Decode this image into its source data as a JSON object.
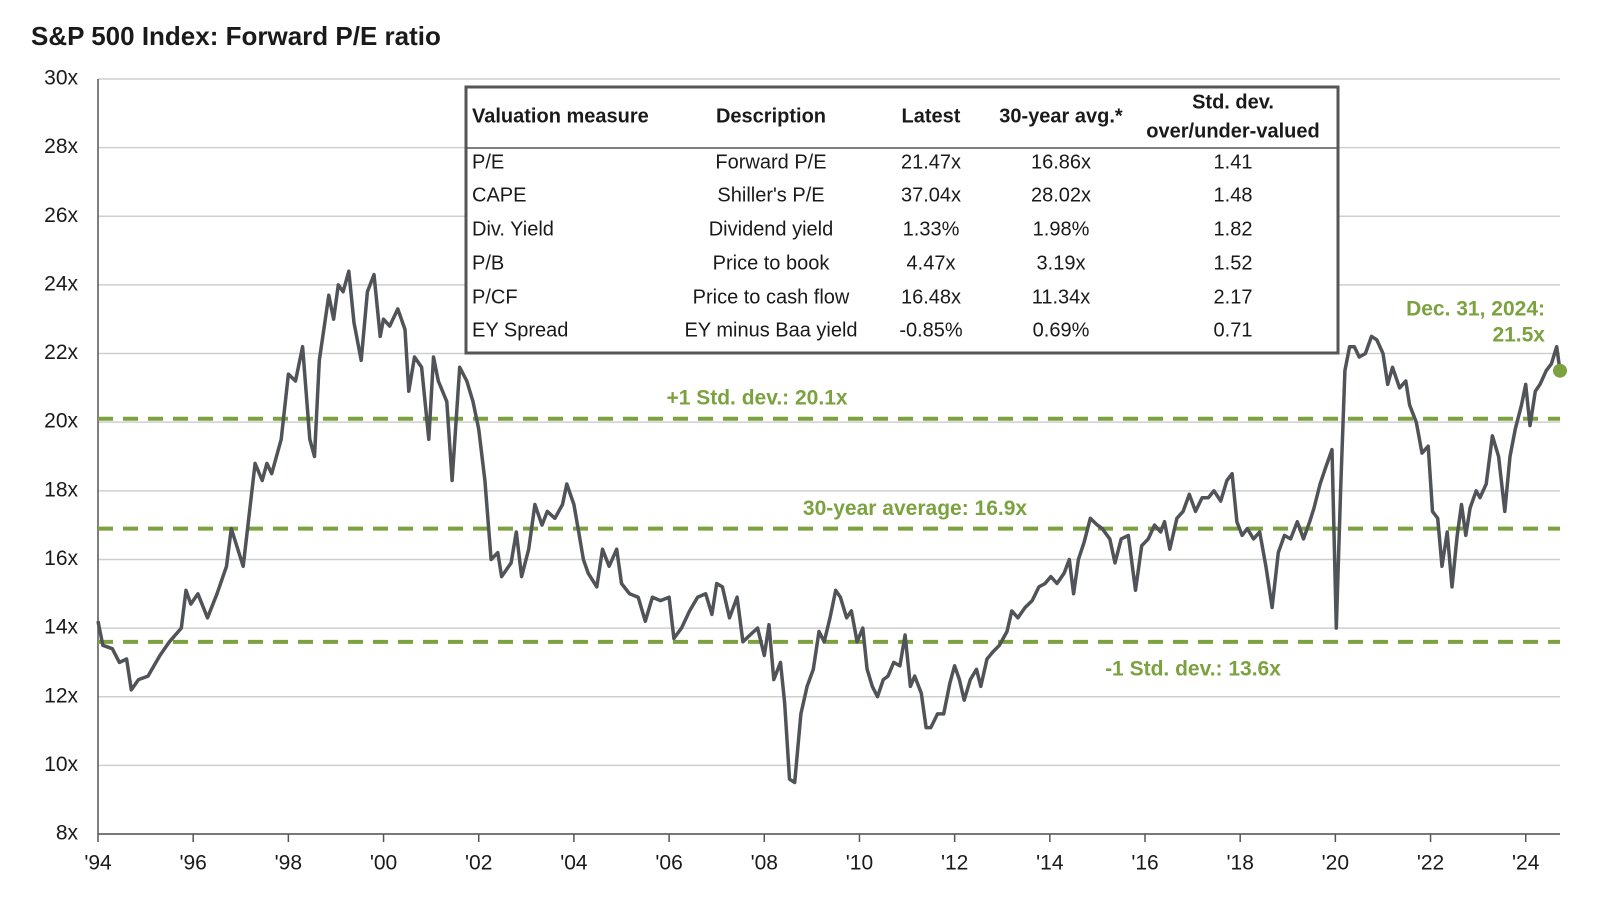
{
  "chart_data": {
    "type": "line",
    "title": "S&P 500 Index: Forward P/E ratio",
    "x": [
      1994.0,
      1994.1,
      1994.3,
      1994.45,
      1994.6,
      1994.7,
      1994.85,
      1995.05,
      1995.3,
      1995.5,
      1995.75,
      1995.85,
      1995.95,
      1996.1,
      1996.3,
      1996.5,
      1996.7,
      1996.8,
      1997.05,
      1997.3,
      1997.45,
      1997.55,
      1997.65,
      1997.85,
      1998.0,
      1998.15,
      1998.3,
      1998.45,
      1998.55,
      1998.65,
      1998.85,
      1998.95,
      1999.05,
      1999.15,
      1999.27,
      1999.38,
      1999.53,
      1999.66,
      1999.8,
      1999.93,
      2000.0,
      2000.13,
      2000.3,
      2000.45,
      2000.53,
      2000.65,
      2000.8,
      2000.95,
      2001.05,
      2001.15,
      2001.33,
      2001.44,
      2001.6,
      2001.75,
      2001.88,
      2002.0,
      2002.13,
      2002.26,
      2002.4,
      2002.48,
      2002.68,
      2002.79,
      2002.9,
      2003.05,
      2003.18,
      2003.33,
      2003.44,
      2003.6,
      2003.76,
      2003.85,
      2004.0,
      2004.1,
      2004.2,
      2004.3,
      2004.48,
      2004.6,
      2004.74,
      2004.9,
      2005.0,
      2005.17,
      2005.35,
      2005.5,
      2005.65,
      2005.82,
      2006.0,
      2006.1,
      2006.26,
      2006.43,
      2006.6,
      2006.77,
      2006.9,
      2007.0,
      2007.12,
      2007.27,
      2007.43,
      2007.55,
      2007.7,
      2007.86,
      2008.0,
      2008.1,
      2008.2,
      2008.34,
      2008.43,
      2008.53,
      2008.64,
      2008.77,
      2008.9,
      2009.03,
      2009.15,
      2009.26,
      2009.38,
      2009.5,
      2009.6,
      2009.73,
      2009.83,
      2009.95,
      2010.07,
      2010.16,
      2010.27,
      2010.38,
      2010.5,
      2010.6,
      2010.72,
      2010.85,
      2010.96,
      2011.07,
      2011.16,
      2011.3,
      2011.4,
      2011.5,
      2011.64,
      2011.77,
      2011.9,
      2012.0,
      2012.1,
      2012.2,
      2012.33,
      2012.46,
      2012.55,
      2012.68,
      2012.8,
      2012.94,
      2013.1,
      2013.2,
      2013.33,
      2013.48,
      2013.63,
      2013.77,
      2013.9,
      2014.02,
      2014.15,
      2014.3,
      2014.41,
      2014.5,
      2014.6,
      2014.72,
      2014.85,
      2015.0,
      2015.1,
      2015.26,
      2015.37,
      2015.5,
      2015.65,
      2015.8,
      2015.93,
      2016.07,
      2016.2,
      2016.33,
      2016.41,
      2016.52,
      2016.67,
      2016.8,
      2016.93,
      2017.06,
      2017.2,
      2017.33,
      2017.45,
      2017.59,
      2017.72,
      2017.83,
      2017.93,
      2018.04,
      2018.15,
      2018.28,
      2018.41,
      2018.54,
      2018.67,
      2018.8,
      2018.93,
      2019.06,
      2019.2,
      2019.33,
      2019.46,
      2019.55,
      2019.68,
      2019.8,
      2019.93,
      2020.02,
      2020.11,
      2020.2,
      2020.3,
      2020.4,
      2020.5,
      2020.63,
      2020.76,
      2020.87,
      2021.0,
      2021.1,
      2021.2,
      2021.35,
      2021.48,
      2021.56,
      2021.7,
      2021.82,
      2021.95,
      2022.04,
      2022.15,
      2022.24,
      2022.35,
      2022.45,
      2022.56,
      2022.65,
      2022.74,
      2022.83,
      2022.96,
      2023.04,
      2023.17,
      2023.3,
      2023.43,
      2023.56,
      2023.67,
      2023.78,
      2023.91,
      2024.0,
      2024.09,
      2024.2,
      2024.3,
      2024.43,
      2024.54,
      2024.65,
      2024.72
    ],
    "values": [
      14.2,
      13.5,
      13.4,
      13.0,
      13.1,
      12.2,
      12.5,
      12.6,
      13.2,
      13.6,
      14.0,
      15.1,
      14.7,
      15.0,
      14.3,
      15.0,
      15.8,
      16.9,
      15.8,
      18.8,
      18.3,
      18.8,
      18.5,
      19.5,
      21.4,
      21.2,
      22.2,
      19.5,
      19.0,
      21.8,
      23.7,
      23.0,
      24.0,
      23.8,
      24.4,
      22.9,
      21.8,
      23.8,
      24.3,
      22.5,
      23.0,
      22.8,
      23.3,
      22.7,
      20.9,
      21.9,
      21.6,
      19.5,
      21.9,
      21.2,
      20.6,
      18.3,
      21.6,
      21.2,
      20.6,
      19.8,
      18.3,
      16.0,
      16.2,
      15.5,
      15.9,
      16.8,
      15.5,
      16.3,
      17.6,
      17.0,
      17.4,
      17.2,
      17.6,
      18.2,
      17.6,
      16.8,
      16.0,
      15.6,
      15.2,
      16.3,
      15.8,
      16.3,
      15.3,
      15.0,
      14.9,
      14.2,
      14.9,
      14.8,
      14.9,
      13.7,
      14.0,
      14.5,
      14.9,
      15.0,
      14.4,
      15.3,
      15.2,
      14.3,
      14.9,
      13.6,
      13.8,
      14.0,
      13.2,
      14.1,
      12.5,
      13.0,
      11.8,
      9.6,
      9.5,
      11.5,
      12.3,
      12.8,
      13.9,
      13.6,
      14.3,
      15.1,
      14.9,
      14.3,
      14.5,
      13.6,
      14.0,
      12.8,
      12.3,
      12.0,
      12.5,
      12.6,
      13.0,
      12.9,
      13.8,
      12.3,
      12.6,
      12.1,
      11.1,
      11.1,
      11.5,
      11.5,
      12.4,
      12.9,
      12.5,
      11.9,
      12.5,
      12.8,
      12.3,
      13.1,
      13.3,
      13.5,
      13.9,
      14.5,
      14.3,
      14.6,
      14.8,
      15.2,
      15.3,
      15.5,
      15.3,
      15.6,
      16.0,
      15.0,
      16.0,
      16.5,
      17.2,
      17.0,
      16.9,
      16.6,
      15.9,
      16.6,
      16.7,
      15.1,
      16.4,
      16.6,
      17.0,
      16.8,
      17.1,
      16.3,
      17.2,
      17.4,
      17.9,
      17.4,
      17.8,
      17.8,
      18.0,
      17.7,
      18.3,
      18.5,
      17.1,
      16.7,
      16.9,
      16.6,
      16.8,
      15.8,
      14.6,
      16.2,
      16.7,
      16.6,
      17.1,
      16.6,
      17.1,
      17.5,
      18.2,
      18.7,
      19.2,
      14.0,
      18.0,
      21.5,
      22.2,
      22.2,
      21.9,
      22.0,
      22.5,
      22.4,
      22.0,
      21.1,
      21.6,
      21.0,
      21.2,
      20.5,
      20.0,
      19.1,
      19.3,
      17.4,
      17.2,
      15.8,
      16.8,
      15.2,
      16.7,
      17.6,
      16.7,
      17.5,
      18.0,
      17.8,
      18.2,
      19.6,
      19.0,
      17.4,
      19.0,
      19.8,
      20.5,
      21.1,
      19.9,
      20.9,
      21.1,
      21.5,
      21.7,
      22.2,
      21.5
    ],
    "color": "#505357",
    "xlim": [
      1994.0,
      2024.72
    ],
    "xticks": [
      {
        "value": 1994,
        "label": "'94"
      },
      {
        "value": 1996,
        "label": "'96"
      },
      {
        "value": 1998,
        "label": "'98"
      },
      {
        "value": 2000,
        "label": "'00"
      },
      {
        "value": 2002,
        "label": "'02"
      },
      {
        "value": 2004,
        "label": "'04"
      },
      {
        "value": 2006,
        "label": "'06"
      },
      {
        "value": 2008,
        "label": "'08"
      },
      {
        "value": 2010,
        "label": "'10"
      },
      {
        "value": 2012,
        "label": "'12"
      },
      {
        "value": 2014,
        "label": "'14"
      },
      {
        "value": 2016,
        "label": "'16"
      },
      {
        "value": 2018,
        "label": "'18"
      },
      {
        "value": 2020,
        "label": "'20"
      },
      {
        "value": 2022,
        "label": "'22"
      },
      {
        "value": 2024,
        "label": "'24"
      }
    ],
    "ylim": [
      8,
      30
    ],
    "yticks": [
      {
        "value": 8,
        "label": "8x"
      },
      {
        "value": 10,
        "label": "10x"
      },
      {
        "value": 12,
        "label": "12x"
      },
      {
        "value": 14,
        "label": "14x"
      },
      {
        "value": 16,
        "label": "16x"
      },
      {
        "value": 18,
        "label": "18x"
      },
      {
        "value": 20,
        "label": "20x"
      },
      {
        "value": 22,
        "label": "22x"
      },
      {
        "value": 24,
        "label": "24x"
      },
      {
        "value": 26,
        "label": "26x"
      },
      {
        "value": 28,
        "label": "28x"
      },
      {
        "value": 30,
        "label": "30x"
      }
    ],
    "grid": true,
    "reference_color": "#7ba23f",
    "reference_lines": [
      {
        "value": 20.1,
        "label": "+1 Std. dev.: 20.1x"
      },
      {
        "value": 16.9,
        "label": "30-year average: 16.9x"
      },
      {
        "value": 13.6,
        "label": "-1 Std. dev.: 13.6x"
      }
    ],
    "end_annotation": [
      "Dec. 31, 2024:",
      "21.5x"
    ],
    "table": {
      "header": [
        [
          "Valuation measure"
        ],
        [
          "Description"
        ],
        [
          "Latest"
        ],
        [
          "30-year avg.*"
        ],
        [
          "Std. dev.",
          "over/under-valued"
        ]
      ],
      "rows": [
        [
          "P/E",
          "Forward P/E",
          "21.47x",
          "16.86x",
          "1.41"
        ],
        [
          "CAPE",
          "Shiller's P/E",
          "37.04x",
          "28.02x",
          "1.48"
        ],
        [
          "Div. Yield",
          "Dividend yield",
          "1.33%",
          "1.98%",
          "1.82"
        ],
        [
          "P/B",
          "Price to book",
          "4.47x",
          "3.19x",
          "1.52"
        ],
        [
          "P/CF",
          "Price to cash flow",
          "16.48x",
          "11.34x",
          "2.17"
        ],
        [
          "EY Spread",
          "EY minus Baa yield",
          "-0.85%",
          "0.69%",
          "0.71"
        ]
      ]
    }
  }
}
